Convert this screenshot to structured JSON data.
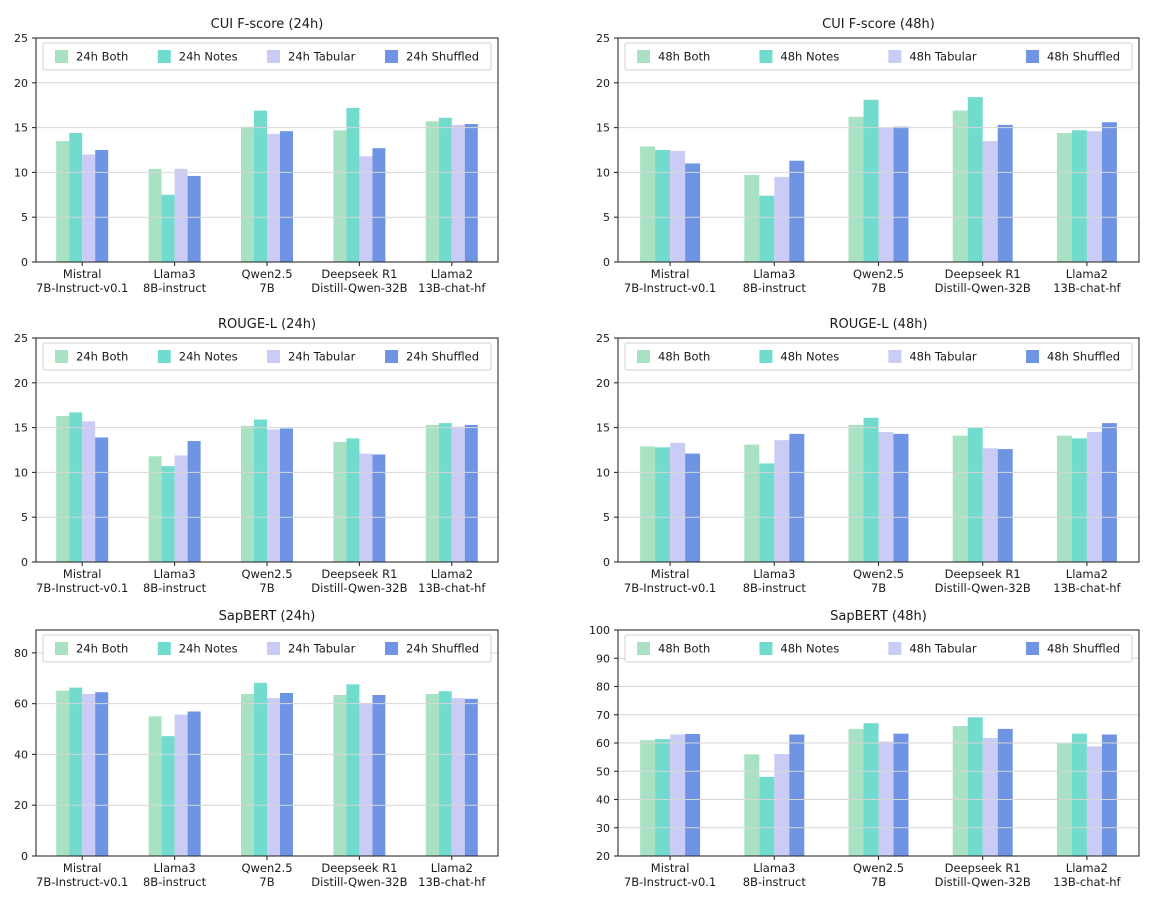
{
  "figure": {
    "layout": "2x3-grid-of-bar-charts",
    "background": "#ffffff"
  },
  "colors": {
    "both": "#a9e2c3",
    "notes": "#71dccd",
    "tabular": "#cbccf6",
    "shuffled": "#6e94e3",
    "grid_line": "#d6d6d6",
    "spine": "#2e2e2e",
    "text": "#1a1a1a",
    "legend_border": "#d0d0d0",
    "legend_bg": "#ffffff"
  },
  "categories_two_line": [
    [
      "Mistral",
      "7B-Instruct-v0.1"
    ],
    [
      "Llama3",
      "8B-instruct"
    ],
    [
      "Qwen2.5",
      "7B"
    ],
    [
      "Deepseek R1",
      "Distill-Qwen-32B"
    ],
    [
      "Llama2",
      "13B-chat-hf"
    ]
  ],
  "chart_data": [
    {
      "type": "bar",
      "title": "CUI F-score (24h)",
      "categories": [
        "Mistral 7B-Instruct-v0.1",
        "Llama3 8B-instruct",
        "Qwen2.5 7B",
        "Deepseek R1 Distill-Qwen-32B",
        "Llama2 13B-chat-hf"
      ],
      "series": [
        {
          "name": "24h Both",
          "color_key": "both",
          "values": [
            13.5,
            10.4,
            15.1,
            14.7,
            15.7
          ]
        },
        {
          "name": "24h Notes",
          "color_key": "notes",
          "values": [
            14.4,
            7.5,
            16.9,
            17.2,
            16.1
          ]
        },
        {
          "name": "24h Tabular",
          "color_key": "tabular",
          "values": [
            12.0,
            10.4,
            14.3,
            11.8,
            15.3
          ]
        },
        {
          "name": "24h Shuffled",
          "color_key": "shuffled",
          "values": [
            12.5,
            9.6,
            14.6,
            12.7,
            15.4
          ]
        }
      ],
      "xlabel": "",
      "ylabel": "",
      "ylim": [
        0,
        25
      ],
      "yticks": [
        0,
        5,
        10,
        15,
        20,
        25
      ],
      "grid": "horizontal",
      "legend_position": "top-expanded"
    },
    {
      "type": "bar",
      "title": "CUI F-score (48h)",
      "categories": [
        "Mistral 7B-Instruct-v0.1",
        "Llama3 8B-instruct",
        "Qwen2.5 7B",
        "Deepseek R1 Distill-Qwen-32B",
        "Llama2 13B-chat-hf"
      ],
      "series": [
        {
          "name": "48h Both",
          "color_key": "both",
          "values": [
            12.9,
            9.7,
            16.2,
            16.9,
            14.4
          ]
        },
        {
          "name": "48h Notes",
          "color_key": "notes",
          "values": [
            12.5,
            7.4,
            18.1,
            18.4,
            14.7
          ]
        },
        {
          "name": "48h Tabular",
          "color_key": "tabular",
          "values": [
            12.4,
            9.5,
            15.0,
            13.5,
            14.6
          ]
        },
        {
          "name": "48h Shuffled",
          "color_key": "shuffled",
          "values": [
            11.0,
            11.3,
            15.1,
            15.3,
            15.6
          ]
        }
      ],
      "xlabel": "",
      "ylabel": "",
      "ylim": [
        0,
        25
      ],
      "yticks": [
        0,
        5,
        10,
        15,
        20,
        25
      ],
      "grid": "horizontal",
      "legend_position": "top-expanded"
    },
    {
      "type": "bar",
      "title": "ROUGE-L (24h)",
      "categories": [
        "Mistral 7B-Instruct-v0.1",
        "Llama3 8B-instruct",
        "Qwen2.5 7B",
        "Deepseek R1 Distill-Qwen-32B",
        "Llama2 13B-chat-hf"
      ],
      "series": [
        {
          "name": "24h Both",
          "color_key": "both",
          "values": [
            16.3,
            11.8,
            15.2,
            13.4,
            15.3
          ]
        },
        {
          "name": "24h Notes",
          "color_key": "notes",
          "values": [
            16.7,
            10.7,
            15.9,
            13.8,
            15.5
          ]
        },
        {
          "name": "24h Tabular",
          "color_key": "tabular",
          "values": [
            15.7,
            11.9,
            14.8,
            12.1,
            15.1
          ]
        },
        {
          "name": "24h Shuffled",
          "color_key": "shuffled",
          "values": [
            13.9,
            13.5,
            14.9,
            12.0,
            15.3
          ]
        }
      ],
      "xlabel": "",
      "ylabel": "",
      "ylim": [
        0,
        25
      ],
      "yticks": [
        0,
        5,
        10,
        15,
        20,
        25
      ],
      "grid": "horizontal",
      "legend_position": "top-expanded"
    },
    {
      "type": "bar",
      "title": "ROUGE-L (48h)",
      "categories": [
        "Mistral 7B-Instruct-v0.1",
        "Llama3 8B-instruct",
        "Qwen2.5 7B",
        "Deepseek R1 Distill-Qwen-32B",
        "Llama2 13B-chat-hf"
      ],
      "series": [
        {
          "name": "48h Both",
          "color_key": "both",
          "values": [
            12.9,
            13.1,
            15.3,
            14.1,
            14.1
          ]
        },
        {
          "name": "48h Notes",
          "color_key": "notes",
          "values": [
            12.8,
            11.0,
            16.1,
            15.0,
            13.8
          ]
        },
        {
          "name": "48h Tabular",
          "color_key": "tabular",
          "values": [
            13.3,
            13.6,
            14.5,
            12.7,
            14.5
          ]
        },
        {
          "name": "48h Shuffled",
          "color_key": "shuffled",
          "values": [
            12.1,
            14.3,
            14.3,
            12.6,
            15.5
          ]
        }
      ],
      "xlabel": "",
      "ylabel": "",
      "ylim": [
        0,
        25
      ],
      "yticks": [
        0,
        5,
        10,
        15,
        20,
        25
      ],
      "grid": "horizontal",
      "legend_position": "top-expanded"
    },
    {
      "type": "bar",
      "title": "SapBERT (24h)",
      "categories": [
        "Mistral 7B-Instruct-v0.1",
        "Llama3 8B-instruct",
        "Qwen2.5 7B",
        "Deepseek R1 Distill-Qwen-32B",
        "Llama2 13B-chat-hf"
      ],
      "series": [
        {
          "name": "24h Both",
          "color_key": "both",
          "values": [
            65.1,
            55.0,
            63.8,
            63.4,
            63.8
          ]
        },
        {
          "name": "24h Notes",
          "color_key": "notes",
          "values": [
            66.3,
            47.2,
            68.2,
            67.6,
            64.9
          ]
        },
        {
          "name": "24h Tabular",
          "color_key": "tabular",
          "values": [
            63.8,
            55.7,
            62.2,
            60.3,
            62.2
          ]
        },
        {
          "name": "24h Shuffled",
          "color_key": "shuffled",
          "values": [
            64.5,
            56.9,
            64.2,
            63.4,
            61.9
          ]
        }
      ],
      "xlabel": "",
      "ylabel": "",
      "ylim": [
        0,
        89
      ],
      "yticks": [
        0,
        20,
        40,
        60,
        80
      ],
      "grid": "horizontal",
      "legend_position": "top-expanded"
    },
    {
      "type": "bar",
      "title": "SapBERT (48h)",
      "categories": [
        "Mistral 7B-Instruct-v0.1",
        "Llama3 8B-instruct",
        "Qwen2.5 7B",
        "Deepseek R1 Distill-Qwen-32B",
        "Llama2 13B-chat-hf"
      ],
      "series": [
        {
          "name": "48h Both",
          "color_key": "both",
          "values": [
            61.0,
            56.0,
            65.0,
            66.0,
            60.1
          ]
        },
        {
          "name": "48h Notes",
          "color_key": "notes",
          "values": [
            61.4,
            48.0,
            67.0,
            69.1,
            63.3
          ]
        },
        {
          "name": "48h Tabular",
          "color_key": "tabular",
          "values": [
            63.0,
            56.1,
            60.5,
            61.8,
            58.8
          ]
        },
        {
          "name": "48h Shuffled",
          "color_key": "shuffled",
          "values": [
            63.2,
            63.0,
            63.3,
            65.0,
            63.0
          ]
        }
      ],
      "xlabel": "",
      "ylabel": "",
      "ylim": [
        20,
        100
      ],
      "yticks": [
        20,
        30,
        40,
        50,
        60,
        70,
        80,
        90,
        100
      ],
      "grid": "horizontal",
      "legend_position": "top-expanded"
    }
  ]
}
